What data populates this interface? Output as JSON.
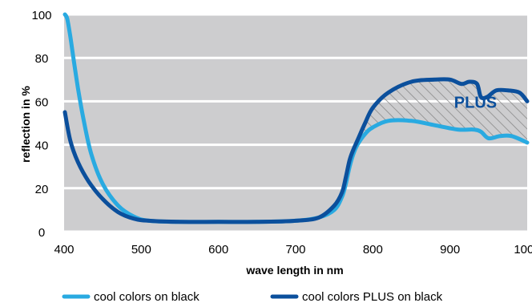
{
  "chart_data": {
    "type": "line",
    "xlabel": "wave length in nm",
    "ylabel": "reflection in %",
    "xlim": [
      400,
      1000
    ],
    "ylim": [
      0,
      100
    ],
    "x_ticks": [
      "400",
      "500",
      "600",
      "700",
      "800",
      "900",
      "1000"
    ],
    "y_ticks": [
      "0",
      "20",
      "40",
      "60",
      "80",
      "100"
    ],
    "grid": true,
    "legend_position": "bottom",
    "annotation": {
      "text": "PLUS",
      "x": 933,
      "y": 57
    },
    "colors": {
      "background_band": "#cdcdcf",
      "gridline": "#ffffff",
      "series_light": "#29aae1",
      "series_dark": "#0b4f9c",
      "hatch": "#8a8a8a"
    },
    "series": [
      {
        "name": "cool colors on black",
        "color": "#29aae1",
        "x": [
          401,
          404,
          408,
          412,
          418,
          425,
          435,
          450,
          470,
          490,
          510,
          550,
          600,
          650,
          700,
          730,
          750,
          760,
          765,
          770,
          775,
          780,
          790,
          800,
          820,
          850,
          880,
          910,
          930,
          940,
          950,
          965,
          980,
          1000
        ],
        "y": [
          100,
          98,
          90,
          80,
          66,
          52,
          36,
          22,
          12,
          7,
          5,
          4.5,
          4.5,
          4.5,
          5,
          6.5,
          10,
          16,
          22,
          30,
          36,
          40,
          45,
          48,
          51,
          51,
          49,
          47,
          47,
          46,
          43,
          44,
          44,
          41
        ]
      },
      {
        "name": "cool colors PLUS on black",
        "color": "#0b4f9c",
        "x": [
          401,
          408,
          418,
          432,
          450,
          470,
          490,
          510,
          550,
          600,
          650,
          700,
          730,
          750,
          760,
          765,
          770,
          775,
          780,
          790,
          800,
          820,
          850,
          880,
          900,
          915,
          925,
          935,
          940,
          948,
          960,
          975,
          990,
          1000
        ],
        "y": [
          55,
          42,
          32,
          23,
          15,
          9,
          6,
          5,
          4.5,
          4.5,
          4.5,
          5,
          6.5,
          12,
          18,
          25,
          33,
          38,
          42,
          50,
          57,
          64,
          69,
          70,
          70,
          68,
          69,
          68,
          62,
          62,
          65,
          65,
          64,
          60
        ]
      }
    ]
  }
}
